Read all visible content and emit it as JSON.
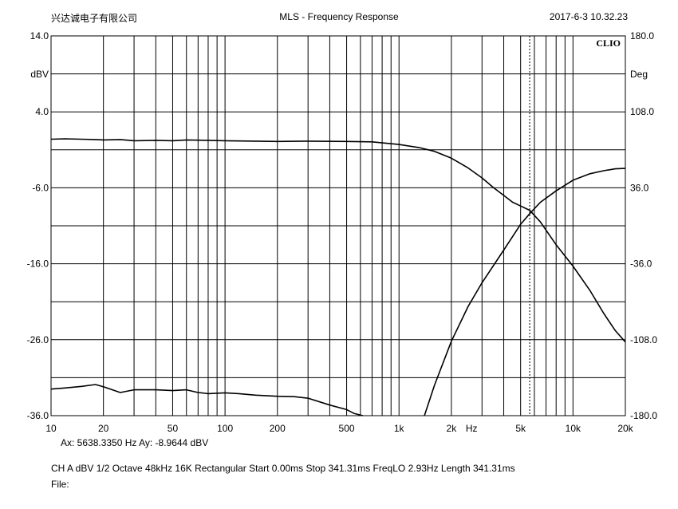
{
  "header": {
    "company": "兴达诚电子有限公司",
    "title": "MLS - Frequency Response",
    "timestamp": "2017-6-3 10.32.23"
  },
  "chart_data": {
    "type": "line",
    "title": "MLS - Frequency Response",
    "brand_label": "CLIO",
    "x_axis": {
      "scale": "log",
      "range": [
        10,
        20000
      ],
      "unit_label": "Hz",
      "ticks": [
        {
          "value": 10,
          "label": "10"
        },
        {
          "value": 20,
          "label": "20"
        },
        {
          "value": 50,
          "label": "50"
        },
        {
          "value": 100,
          "label": "100"
        },
        {
          "value": 200,
          "label": "200"
        },
        {
          "value": 500,
          "label": "500"
        },
        {
          "value": 1000,
          "label": "1k"
        },
        {
          "value": 2000,
          "label": "2k"
        },
        {
          "value": 5000,
          "label": "5k"
        },
        {
          "value": 10000,
          "label": "10k"
        },
        {
          "value": 20000,
          "label": "20k"
        }
      ]
    },
    "y_left": {
      "unit_label": "dBV",
      "range": [
        -36,
        14
      ],
      "ticks": [
        {
          "value": 14,
          "label": "14.0"
        },
        {
          "value": 4,
          "label": "4.0"
        },
        {
          "value": -6,
          "label": "-6.0"
        },
        {
          "value": -16,
          "label": "-16.0"
        },
        {
          "value": -26,
          "label": "-26.0"
        },
        {
          "value": -36,
          "label": "-36.0"
        }
      ]
    },
    "y_right": {
      "unit_label": "Deg",
      "range": [
        -180,
        180
      ],
      "ticks": [
        {
          "value": 180,
          "label": "180.0"
        },
        {
          "value": 108,
          "label": "108.0"
        },
        {
          "value": 36,
          "label": "36.0"
        },
        {
          "value": -36,
          "label": "-36.0"
        },
        {
          "value": -108,
          "label": "-108.0"
        },
        {
          "value": -180,
          "label": "-180.0"
        }
      ]
    },
    "grid": true,
    "cursor": {
      "x": 5638.335,
      "y": -8.9644
    },
    "series": [
      {
        "axis": "left",
        "color": "#000000",
        "points": [
          [
            10,
            0.4
          ],
          [
            12,
            0.45
          ],
          [
            15,
            0.4
          ],
          [
            18,
            0.35
          ],
          [
            20,
            0.3
          ],
          [
            25,
            0.35
          ],
          [
            30,
            0.2
          ],
          [
            40,
            0.25
          ],
          [
            50,
            0.2
          ],
          [
            60,
            0.3
          ],
          [
            80,
            0.25
          ],
          [
            100,
            0.2
          ],
          [
            150,
            0.15
          ],
          [
            200,
            0.1
          ],
          [
            300,
            0.15
          ],
          [
            500,
            0.1
          ],
          [
            700,
            0.05
          ],
          [
            1000,
            -0.3
          ],
          [
            1300,
            -0.7
          ],
          [
            1600,
            -1.2
          ],
          [
            2000,
            -2.1
          ],
          [
            2500,
            -3.4
          ],
          [
            3000,
            -4.7
          ],
          [
            3500,
            -6.0
          ],
          [
            4000,
            -7.0
          ],
          [
            4500,
            -7.9
          ],
          [
            5000,
            -8.4
          ],
          [
            5638,
            -8.96
          ],
          [
            6500,
            -10.5
          ],
          [
            8000,
            -13.5
          ],
          [
            10000,
            -16.3
          ],
          [
            12500,
            -19.5
          ],
          [
            15000,
            -22.5
          ],
          [
            17500,
            -24.8
          ],
          [
            20000,
            -26.3
          ]
        ]
      },
      {
        "axis": "left",
        "color": "#000000",
        "points": [
          [
            10,
            -32.5
          ],
          [
            12,
            -32.35
          ],
          [
            15,
            -32.15
          ],
          [
            18,
            -31.9
          ],
          [
            20,
            -32.2
          ],
          [
            25,
            -32.95
          ],
          [
            30,
            -32.6
          ],
          [
            40,
            -32.6
          ],
          [
            50,
            -32.7
          ],
          [
            60,
            -32.6
          ],
          [
            70,
            -32.95
          ],
          [
            80,
            -33.1
          ],
          [
            100,
            -33.0
          ],
          [
            120,
            -33.1
          ],
          [
            150,
            -33.3
          ],
          [
            200,
            -33.45
          ],
          [
            250,
            -33.5
          ],
          [
            300,
            -33.7
          ],
          [
            400,
            -34.6
          ],
          [
            500,
            -35.2
          ],
          [
            550,
            -35.7
          ],
          [
            620,
            -36.0
          ]
        ]
      },
      {
        "axis": "left",
        "color": "#000000",
        "points": [
          [
            1400,
            -36.0
          ],
          [
            1600,
            -32.0
          ],
          [
            2000,
            -26.2
          ],
          [
            2500,
            -21.6
          ],
          [
            3000,
            -18.5
          ],
          [
            4000,
            -14.2
          ],
          [
            5000,
            -10.8
          ],
          [
            5638,
            -9.4
          ],
          [
            6500,
            -7.9
          ],
          [
            8000,
            -6.4
          ],
          [
            10000,
            -5.0
          ],
          [
            12500,
            -4.15
          ],
          [
            15000,
            -3.75
          ],
          [
            17500,
            -3.5
          ],
          [
            20000,
            -3.45
          ]
        ]
      }
    ]
  },
  "footer": {
    "cursor_readout": "Ax: 5638.3350 Hz   Ay: -8.9644 dBV",
    "settings": "CH A   dBV   1/2 Octave   48kHz   16K   Rectangular   Start 0.00ms    Stop 341.31ms    FreqLO 2.93Hz    Length 341.31ms",
    "file_label": "File:"
  }
}
